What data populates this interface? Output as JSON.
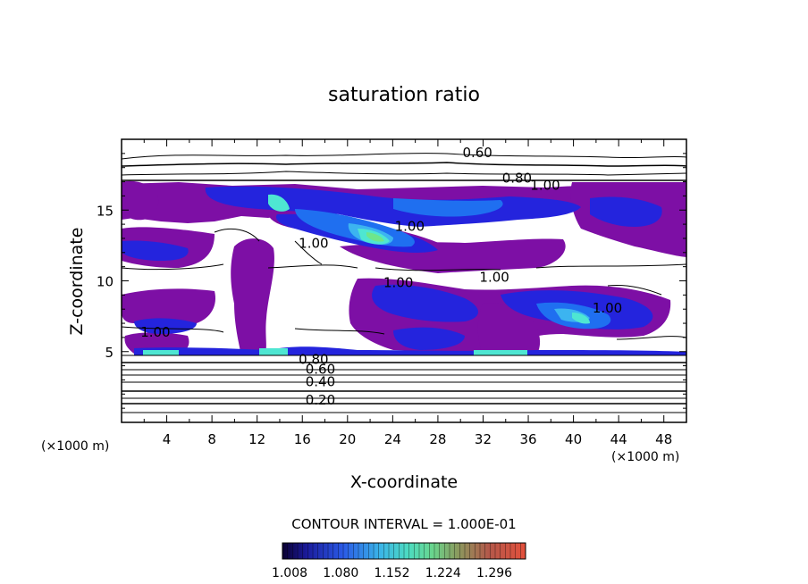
{
  "chart_data": {
    "type": "heatmap",
    "title": "saturation ratio",
    "xlabel": "X-coordinate",
    "ylabel": "Z-coordinate",
    "x_unit_label": "(×1000 m)",
    "z_unit_label": "(×1000 m)",
    "xlim": [
      0,
      50
    ],
    "ylim": [
      0,
      20
    ],
    "x_ticks": [
      "4",
      "8",
      "12",
      "16",
      "20",
      "24",
      "28",
      "32",
      "36",
      "40",
      "44",
      "48"
    ],
    "y_ticks": [
      "5",
      "10",
      "15"
    ],
    "contour_interval_text": "CONTOUR INTERVAL = 1.000E-01",
    "contour_labels": [
      {
        "text": "0.60",
        "x": 31.5,
        "z": 19.0
      },
      {
        "text": "0.80",
        "x": 35.0,
        "z": 17.2
      },
      {
        "text": "1.00",
        "x": 37.5,
        "z": 16.7
      },
      {
        "text": "1.00",
        "x": 25.5,
        "z": 13.8
      },
      {
        "text": "1.00",
        "x": 17.0,
        "z": 12.6
      },
      {
        "text": "1.00",
        "x": 24.5,
        "z": 9.8
      },
      {
        "text": "1.00",
        "x": 33.0,
        "z": 10.2
      },
      {
        "text": "1.00",
        "x": 43.0,
        "z": 8.0
      },
      {
        "text": "1.00",
        "x": 3.0,
        "z": 6.3
      },
      {
        "text": "0.80",
        "x": 17.0,
        "z": 4.4
      },
      {
        "text": "0.60",
        "x": 17.6,
        "z": 3.7
      },
      {
        "text": "0.40",
        "x": 17.6,
        "z": 2.8
      },
      {
        "text": "0.20",
        "x": 17.6,
        "z": 1.5
      }
    ],
    "colorbar": {
      "ticks": [
        "1.008",
        "1.080",
        "1.152",
        "1.224",
        "1.296"
      ],
      "range": [
        1.008,
        1.35
      ]
    },
    "colors": {
      "purple": "#7d0fa5",
      "blue": "#2424dd",
      "mid_blue": "#1f6ff0",
      "light_blue": "#3cb4f0",
      "cyan": "#4ee6d2",
      "green": "#6ee68c"
    }
  }
}
